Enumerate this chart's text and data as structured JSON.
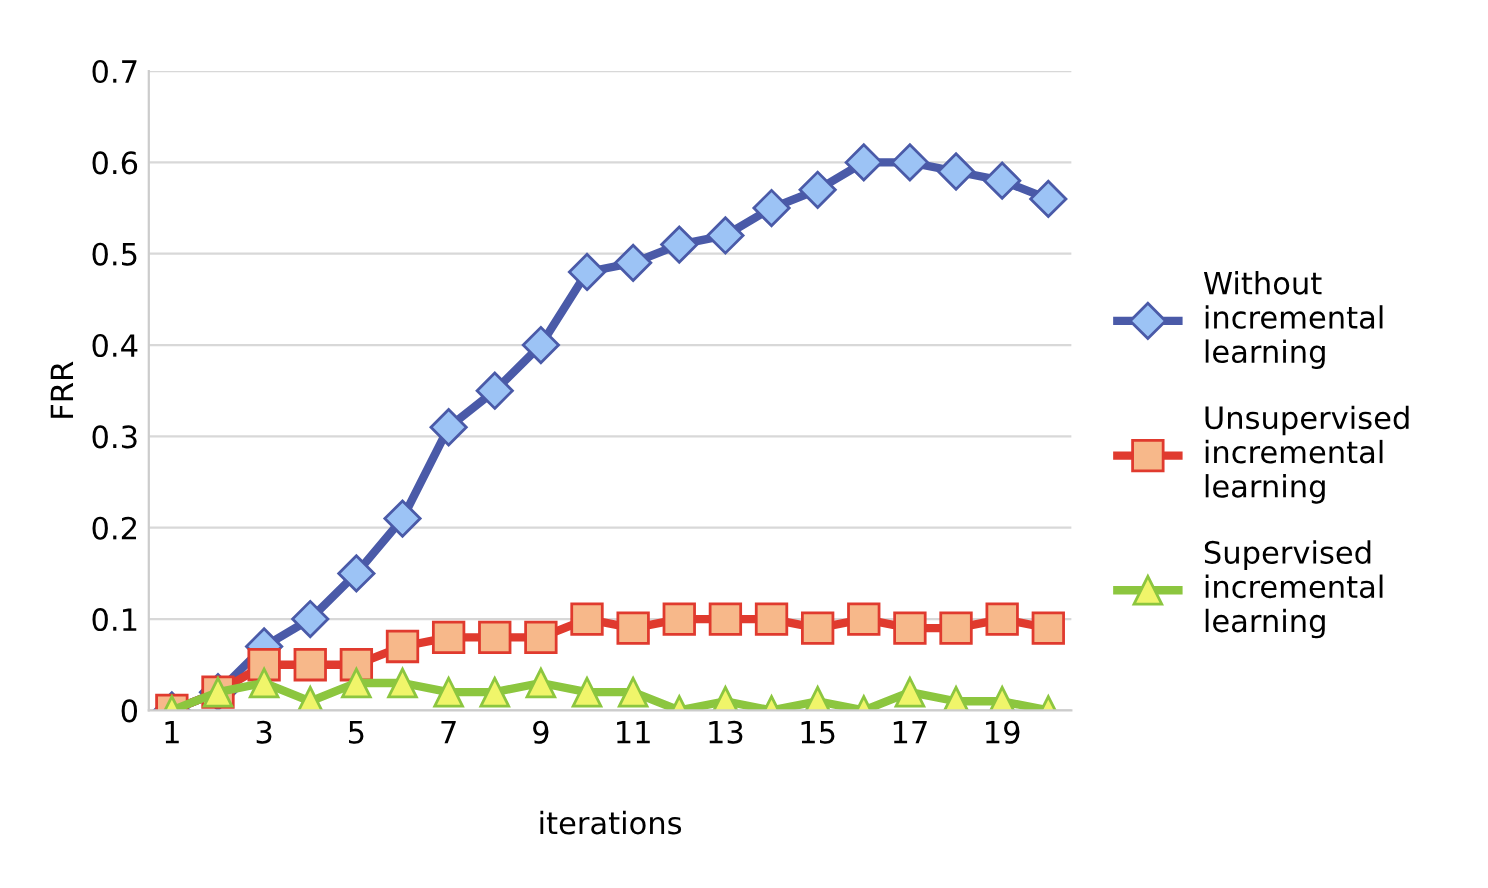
{
  "chart_data": {
    "type": "line",
    "xlabel": "iterations",
    "ylabel": "FRR",
    "categories": [
      "1",
      null,
      "3",
      null,
      "5",
      null,
      "7",
      null,
      "9",
      null,
      "11",
      null,
      "13",
      null,
      "15",
      null,
      "17",
      null,
      "19",
      null
    ],
    "ylim": [
      0,
      0.7
    ],
    "yticks": [
      {
        "value": 0,
        "label": "0"
      },
      0.1,
      0.2,
      0.3,
      0.4,
      0.5,
      0.6,
      0.7
    ],
    "grid": "y",
    "legend": "right",
    "series": [
      {
        "name": "Without incremental learning",
        "color": "#4a5aa8",
        "marker": "diamond",
        "values": [
          0,
          0.02,
          0.07,
          0.1,
          0.15,
          0.21,
          0.31,
          0.35,
          0.4,
          0.48,
          0.49,
          0.51,
          0.52,
          0.55,
          0.57,
          0.6,
          0.6,
          0.59,
          0.58,
          0.56
        ]
      },
      {
        "name": "Unsupervised incremental learning",
        "color": "#e03a2e",
        "marker": "square",
        "values": [
          0,
          0.02,
          0.05,
          0.05,
          0.05,
          0.07,
          0.08,
          0.08,
          0.08,
          0.1,
          0.09,
          0.1,
          0.1,
          0.1,
          0.09,
          0.1,
          0.09,
          0.09,
          0.1,
          0.09
        ]
      },
      {
        "name": "Supervised incremental learning",
        "color": "#8cc63f",
        "marker": "triangle",
        "values": [
          0,
          0.02,
          0.03,
          0.01,
          0.03,
          0.03,
          0.02,
          0.02,
          0.03,
          0.02,
          0.02,
          0,
          0.01,
          0,
          0.01,
          0,
          0.02,
          0.01,
          0.01,
          0
        ]
      }
    ]
  }
}
